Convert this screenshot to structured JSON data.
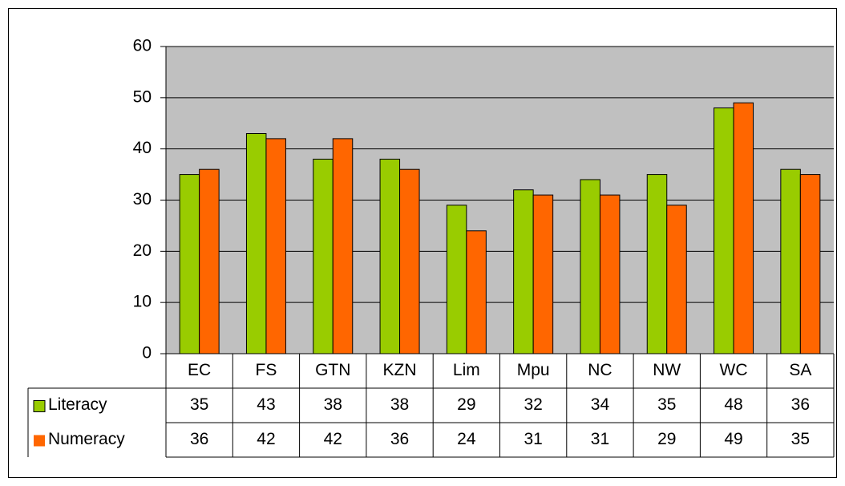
{
  "chart_data": {
    "type": "bar",
    "categories": [
      "EC",
      "FS",
      "GTN",
      "KZN",
      "Lim",
      "Mpu",
      "NC",
      "NW",
      "WC",
      "SA"
    ],
    "series": [
      {
        "name": "Literacy",
        "color": "#99cc00",
        "values": [
          35,
          43,
          38,
          38,
          29,
          32,
          34,
          35,
          48,
          36
        ]
      },
      {
        "name": "Numeracy",
        "color": "#ff6600",
        "values": [
          36,
          42,
          42,
          36,
          24,
          31,
          31,
          29,
          49,
          35
        ]
      }
    ],
    "ylim": [
      0,
      60
    ],
    "yticks": [
      0,
      10,
      20,
      30,
      40,
      50,
      60
    ],
    "grid": true,
    "data_table": true
  }
}
